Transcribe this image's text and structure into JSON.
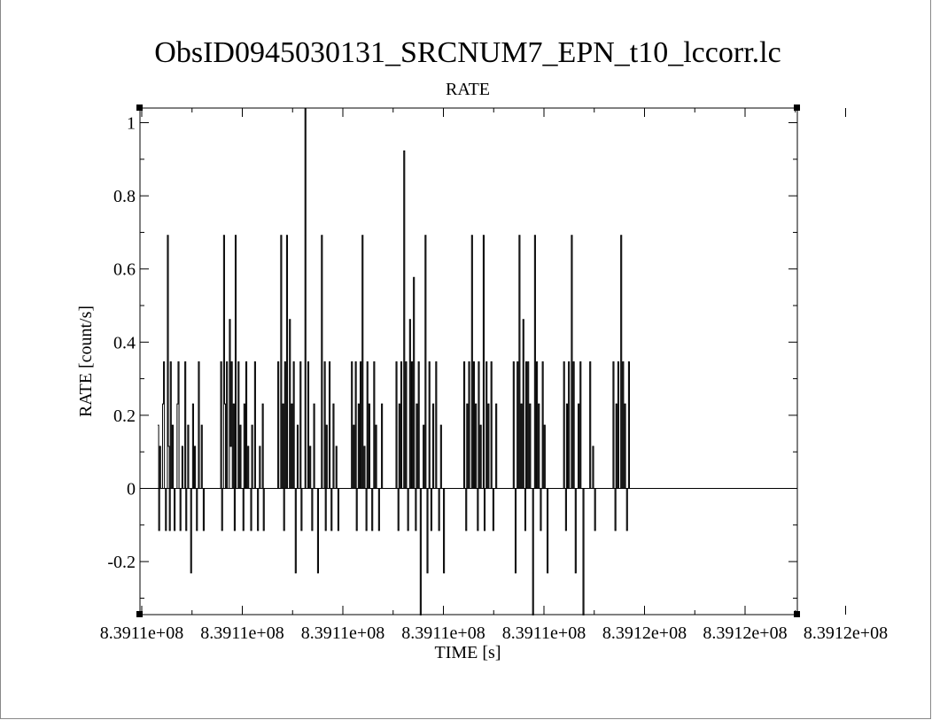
{
  "chart_data": {
    "type": "line",
    "title": "ObsID0945030131_SRCNUM7_EPN_t10_lccorr.lc",
    "subtitle": "RATE",
    "xlabel": "TIME [s]",
    "ylabel": "RATE [count/s]",
    "xticks": [
      "8.3911e+08",
      "8.3911e+08",
      "8.3911e+08",
      "8.3911e+08",
      "8.3911e+08",
      "8.3912e+08",
      "8.3912e+08",
      "8.3912e+08"
    ],
    "yticks": [
      "-0.2",
      "0",
      "0.2",
      "0.4",
      "0.6",
      "0.8",
      "1"
    ],
    "ylim": [
      -0.345,
      1.04
    ],
    "grid": false,
    "legend": "none",
    "bin_size_s": 10,
    "n_bins": 651,
    "rate_levels": [
      -0.115,
      0.0,
      0.115,
      0.173,
      0.231,
      0.346,
      0.462,
      0.577,
      0.692,
      0.808,
      0.923,
      1.04
    ],
    "series": [
      {
        "values": [
          0.173,
          -0.115,
          0.115,
          0.0,
          0.0,
          0.231,
          0.346,
          0.0,
          -0.115,
          0.0,
          0.692,
          0.115,
          -0.115,
          0.346,
          0.0,
          0.173,
          0.0,
          -0.115,
          0.0,
          0.0,
          0.231,
          0.346,
          0.0,
          -0.115,
          0.0,
          0.115,
          0.0,
          0.0,
          0.346,
          -0.115,
          0.0,
          0.173,
          0.0,
          0.0,
          -0.231,
          0.0,
          0.231,
          0.0,
          0.115,
          0.0,
          -0.115,
          0.0,
          0.346,
          0.0,
          0.0,
          0.173,
          0.0,
          -0.115,
          0.0,
          0.0,
          0.0,
          0.0,
          0.0,
          0.0,
          0.0,
          0.0,
          0.0,
          0.0,
          0.0,
          0.0,
          0.0,
          0.0,
          0.0,
          0.0,
          0.0,
          0.346,
          -0.115,
          0.0,
          0.692,
          0.231,
          0.0,
          0.346,
          0.0,
          0.0,
          0.462,
          0.115,
          0.346,
          0.0,
          0.231,
          -0.115,
          0.692,
          0.0,
          0.0,
          0.346,
          0.0,
          0.173,
          0.0,
          0.0,
          -0.115,
          0.231,
          0.0,
          0.346,
          0.0,
          0.115,
          0.0,
          0.0,
          -0.115,
          0.173,
          0.0,
          0.0,
          0.346,
          0.0,
          0.0,
          -0.115,
          0.0,
          0.115,
          0.0,
          0.0,
          0.231,
          -0.115,
          0.0,
          0.0,
          0.0,
          0.0,
          0.0,
          0.0,
          0.0,
          0.0,
          0.0,
          0.0,
          0.0,
          0.0,
          0.0,
          0.0,
          0.346,
          0.0,
          0.0,
          0.692,
          0.0,
          0.231,
          -0.115,
          0.346,
          0.0,
          0.692,
          0.0,
          0.0,
          0.462,
          0.0,
          0.231,
          0.0,
          0.346,
          0.0,
          -0.231,
          0.0,
          0.173,
          0.0,
          0.0,
          0.346,
          -0.115,
          0.0,
          0.0,
          0.0,
          1.04,
          0.0,
          0.0,
          0.346,
          0.0,
          0.115,
          0.0,
          -0.115,
          0.0,
          0.231,
          0.0,
          0.0,
          0.0,
          -0.231,
          0.0,
          0.0,
          0.0,
          0.692,
          0.0,
          0.0,
          0.346,
          -0.115,
          0.173,
          0.0,
          0.0,
          0.346,
          0.0,
          -0.115,
          0.0,
          0.231,
          0.0,
          0.0,
          0.115,
          0.0,
          -0.115,
          0.0,
          0.0,
          0.0,
          0.0,
          0.0,
          0.0,
          0.0,
          0.0,
          0.0,
          0.0,
          0.0,
          0.0,
          0.0,
          0.346,
          0.0,
          0.173,
          0.0,
          0.346,
          -0.115,
          0.0,
          0.231,
          0.0,
          0.346,
          0.0,
          0.692,
          0.0,
          0.115,
          0.0,
          -0.115,
          0.346,
          0.0,
          0.231,
          0.0,
          0.0,
          -0.115,
          0.0,
          0.346,
          0.0,
          0.173,
          0.0,
          0.0,
          -0.115,
          0.0,
          0.0,
          0.231,
          0.0,
          0.0,
          0.0,
          0.0,
          0.0,
          0.0,
          0.0,
          0.0,
          0.0,
          0.0,
          0.0,
          0.0,
          0.0,
          0.0,
          0.346,
          0.0,
          -0.115,
          0.231,
          0.0,
          0.346,
          0.0,
          0.0,
          0.923,
          0.0,
          0.346,
          0.0,
          -0.115,
          0.0,
          0.462,
          0.0,
          0.346,
          0.0,
          0.577,
          0.0,
          -0.115,
          0.231,
          0.0,
          0.346,
          0.0,
          -0.346,
          0.0,
          0.0,
          0.173,
          0.0,
          0.692,
          0.0,
          -0.231,
          0.0,
          0.346,
          0.0,
          -0.115,
          0.0,
          0.231,
          0.0,
          0.0,
          0.346,
          0.0,
          0.0,
          -0.115,
          0.0,
          0.173,
          0.0,
          0.0,
          -0.231,
          0.0,
          0.0,
          0.0,
          0.0,
          0.0,
          0.0,
          0.0,
          0.0,
          0.0,
          0.0,
          0.0,
          0.0,
          0.0,
          0.0,
          0.0,
          0.0,
          0.0,
          0.0,
          0.0,
          0.0,
          0.346,
          0.0,
          -0.115,
          0.231,
          0.0,
          0.346,
          0.0,
          0.0,
          0.692,
          0.0,
          0.346,
          0.0,
          0.231,
          0.0,
          -0.115,
          0.346,
          0.0,
          0.173,
          0.0,
          0.0,
          0.692,
          -0.115,
          0.0,
          0.346,
          0.0,
          0.231,
          0.0,
          0.0,
          0.346,
          0.0,
          -0.115,
          0.0,
          0.0,
          0.231,
          0.0,
          0.0,
          0.0,
          0.0,
          0.0,
          0.0,
          0.0,
          0.0,
          0.0,
          0.0,
          0.0,
          0.0,
          0.0,
          0.0,
          0.0,
          0.0,
          0.0,
          0.346,
          0.0,
          -0.231,
          0.0,
          0.346,
          0.0,
          0.692,
          0.0,
          0.231,
          0.0,
          0.462,
          0.0,
          -0.115,
          0.346,
          0.0,
          0.346,
          0.0,
          0.231,
          0.0,
          0.0,
          -0.346,
          0.0,
          0.692,
          0.0,
          0.346,
          0.0,
          0.231,
          0.0,
          -0.115,
          0.0,
          0.346,
          0.0,
          0.173,
          0.0,
          0.0,
          -0.231,
          0.0,
          0.0,
          0.0,
          0.0,
          0.0,
          0.0,
          0.0,
          0.0,
          0.0,
          0.0,
          0.0,
          0.0,
          0.0,
          0.0,
          0.0,
          0.0,
          0.346,
          0.0,
          -0.115,
          0.231,
          0.0,
          0.346,
          0.0,
          0.0,
          0.692,
          0.0,
          0.346,
          0.0,
          -0.231,
          0.0,
          0.0,
          0.231,
          0.0,
          0.346,
          0.0,
          0.0,
          -0.346,
          0.0,
          0.0,
          0.0,
          0.0,
          0.0,
          0.0,
          0.346,
          0.0,
          0.0,
          0.115,
          0.0,
          -0.115,
          0.0,
          0.0,
          0.0,
          0.0,
          0.0,
          0.0,
          0.0,
          0.0,
          0.0,
          0.0,
          0.0,
          0.0,
          0.0,
          0.0,
          0.0,
          0.0,
          0.0,
          0.0,
          0.346,
          0.0,
          -0.115,
          0.231,
          0.0,
          0.346,
          0.0,
          0.0,
          0.692,
          0.0,
          0.346,
          0.0,
          0.231,
          0.0,
          -0.115,
          0.0,
          0.346,
          0.0,
          0.0,
          0.0,
          0.0,
          0.0,
          0.0,
          0.0,
          0.0,
          0.0,
          0.0,
          0.0,
          0.0,
          0.0,
          0.0,
          0.0,
          0.0,
          0.0,
          0.0,
          0.0,
          0.0,
          0.0,
          0.0,
          0.0,
          0.0,
          0.0,
          0.0,
          0.0,
          0.0,
          0.0,
          0.0,
          0.0,
          0.0,
          0.0,
          0.0,
          0.0,
          0.0,
          0.0,
          0.0,
          0.0,
          0.0,
          0.0,
          0.0,
          0.0,
          0.0,
          0.0,
          0.0,
          0.0,
          0.0,
          0.0,
          0.0,
          0.0,
          0.0,
          0.0,
          0.0,
          0.0,
          0.0,
          0.0,
          0.0,
          0.0,
          0.0,
          0.0,
          0.0,
          0.0,
          0.0,
          0.0,
          0.0,
          0.0,
          0.0,
          0.0,
          0.0,
          0.0,
          0.0,
          0.0,
          0.0,
          0.0,
          0.0,
          0.0,
          0.0,
          0.0,
          0.0,
          0.0,
          0.0,
          0.0,
          0.0,
          0.0,
          0.0,
          0.0,
          0.0,
          0.0,
          0.0,
          0.0,
          0.0,
          0.0,
          0.0,
          0.0,
          0.0,
          0.0,
          0.0,
          0.0,
          0.0,
          0.0,
          0.0,
          0.0,
          0.0,
          0.0,
          0.0,
          0.0,
          0.0,
          0.0,
          0.0,
          0.0,
          0.0,
          0.0,
          0.0,
          0.0,
          0.0,
          0.0,
          0.0,
          0.0,
          0.0,
          0.0,
          0.0,
          0.0,
          0.0,
          0.0,
          0.0,
          0.0,
          0.0,
          0.0,
          0.0,
          0.0,
          0.0,
          0.0,
          0.0,
          0.0,
          0.0,
          0.0,
          0.0,
          0.0,
          0.0,
          0.0,
          0.0,
          0.0,
          0.0,
          0.0,
          0.0,
          0.0,
          0.0,
          0.0,
          0.0,
          0.0,
          0.0,
          0.0,
          0.0,
          0.0,
          0.0,
          0.0,
          0.0,
          0.0,
          0.0,
          0.0,
          0.0,
          0.0,
          0.0,
          0.0,
          0.0,
          0.0
        ]
      }
    ]
  }
}
